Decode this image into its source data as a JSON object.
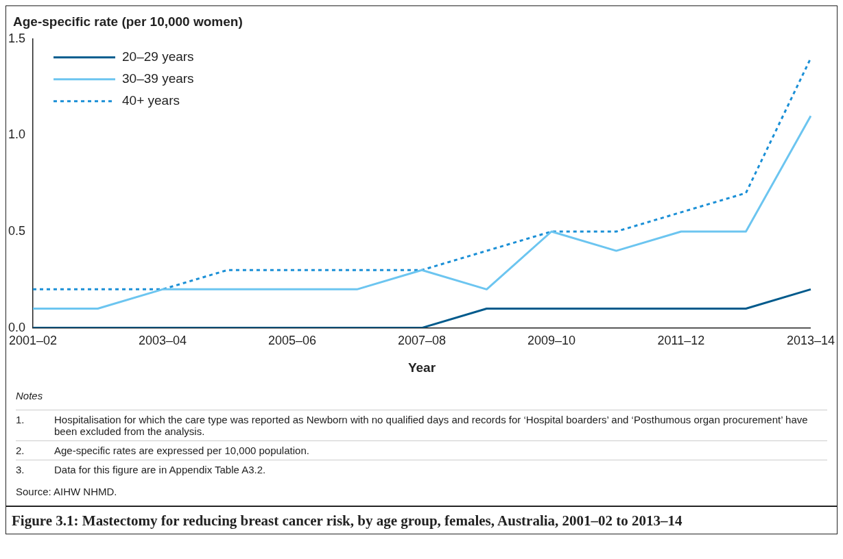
{
  "chart_data": {
    "type": "line",
    "title": "Figure 3.1: Mastectomy for reducing breast cancer risk, by age group, females, Australia, 2001–02 to 2013–14",
    "ylabel": "Age-specific rate (per 10,000 women)",
    "xlabel": "Year",
    "categories": [
      "2001–02",
      null,
      "2003–04",
      null,
      "2005–06",
      null,
      "2007–08",
      null,
      "2009–10",
      null,
      "2011–12",
      null,
      "2013–14"
    ],
    "series": [
      {
        "name": "20–29 years",
        "color": "#005a8c",
        "line_style": "solid",
        "values": [
          0,
          0,
          0,
          0,
          0,
          0,
          0,
          0.1,
          0.1,
          0.1,
          0.1,
          0.1,
          0.2
        ]
      },
      {
        "name": "30–39 years",
        "color": "#6cc5f0",
        "line_style": "solid",
        "values": [
          0.1,
          0.1,
          0.2,
          0.2,
          0.2,
          0.2,
          0.3,
          0.2,
          0.5,
          0.4,
          0.5,
          0.5,
          1.1
        ]
      },
      {
        "name": "40+ years",
        "color": "#1a8fd6",
        "line_style": "dotted",
        "values": [
          0.2,
          0.2,
          0.2,
          0.3,
          0.3,
          0.3,
          0.3,
          0.4,
          0.5,
          0.5,
          0.6,
          0.7,
          1.4
        ]
      }
    ],
    "ylim": [
      0,
      1.5
    ],
    "yticks": [
      {
        "value": 0,
        "label": "0.0"
      },
      0.5,
      {
        "value": 1,
        "label": "1.0"
      },
      1.5
    ],
    "grid": false,
    "legend": "top left",
    "marker": "none",
    "annotations": [
      "Notes",
      "1. Hospitalisation for which the care type was reported as Newborn with no qualified days and records for ‘Hospital boarders’ and ‘Posthumous organ procurement’ have been excluded from the analysis.",
      "2. Age-specific rates are expressed per 10,000 population.",
      "3. Data for this figure are in Appendix Table A3.2.",
      "Source: AIHW NHMD."
    ]
  }
}
